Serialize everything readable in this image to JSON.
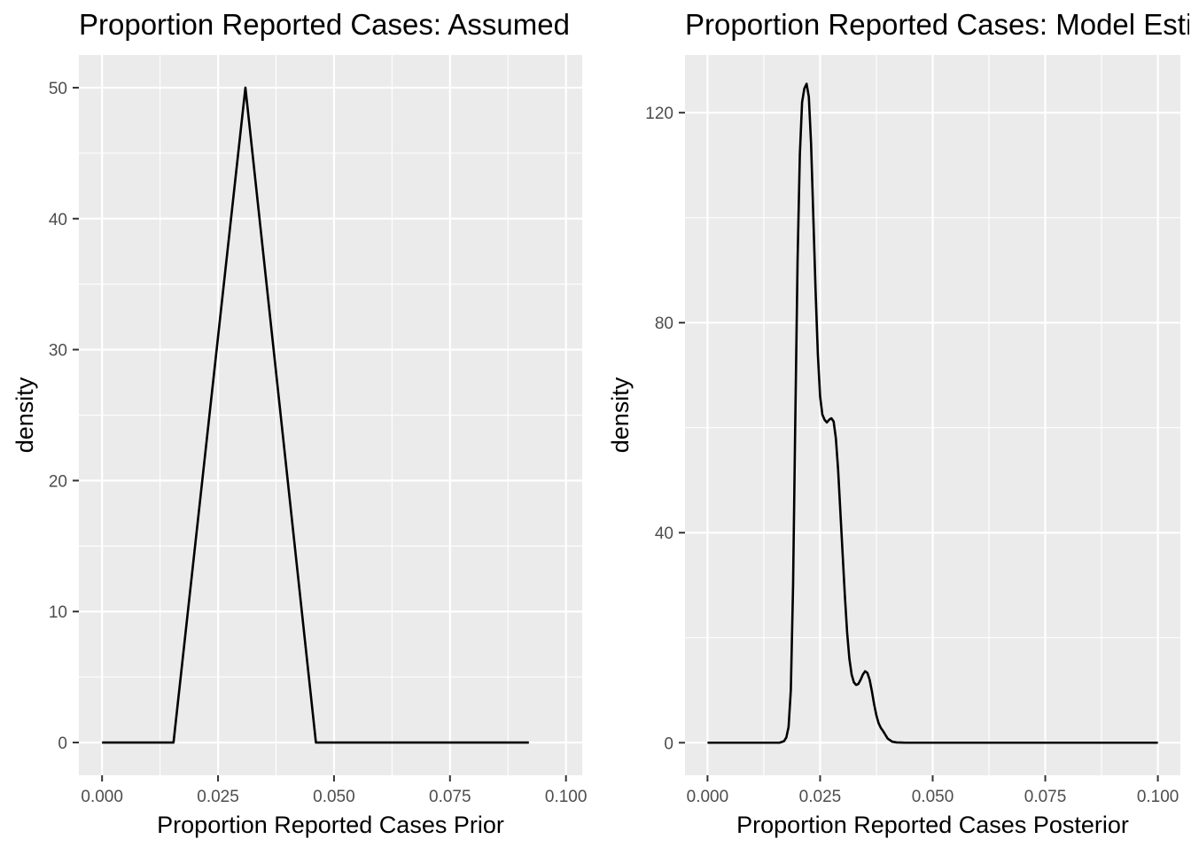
{
  "chart_data": [
    {
      "type": "line",
      "title": "Proportion Reported Cases: Assumed",
      "xlabel": "Proportion Reported Cases Prior",
      "ylabel": "density",
      "xlim": [
        -0.005,
        0.1035
      ],
      "ylim": [
        -2.5,
        52.5
      ],
      "xticks": [
        0.0,
        0.025,
        0.05,
        0.075,
        0.1
      ],
      "xtick_labels": [
        "0.000",
        "0.025",
        "0.050",
        "0.075",
        "0.100"
      ],
      "yticks": [
        0,
        10,
        20,
        30,
        40,
        50
      ],
      "ytick_labels": [
        "0",
        "10",
        "20",
        "30",
        "40",
        "50"
      ],
      "grid": true,
      "series": [
        {
          "x": [
            0.0,
            0.0154,
            0.0309,
            0.0461,
            0.092
          ],
          "y": [
            0,
            0,
            50,
            0,
            0
          ]
        }
      ]
    },
    {
      "type": "line",
      "title": "Proportion Reported Cases: Model Estimated",
      "xlabel": "Proportion Reported Cases Posterior",
      "ylabel": "density",
      "xlim": [
        -0.005,
        0.105
      ],
      "ylim": [
        -6.2,
        131
      ],
      "xticks": [
        0.0,
        0.025,
        0.05,
        0.075,
        0.1
      ],
      "xtick_labels": [
        "0.000",
        "0.025",
        "0.050",
        "0.075",
        "0.100"
      ],
      "yticks": [
        0,
        40,
        80,
        120
      ],
      "ytick_labels": [
        "0",
        "40",
        "80",
        "120"
      ],
      "grid": true,
      "series": [
        {
          "x": [
            0.0,
            0.016,
            0.017,
            0.0175,
            0.018,
            0.0185,
            0.019,
            0.0195,
            0.02,
            0.0205,
            0.021,
            0.0215,
            0.022,
            0.0225,
            0.023,
            0.0235,
            0.024,
            0.0245,
            0.025,
            0.0255,
            0.026,
            0.0265,
            0.027,
            0.0275,
            0.028,
            0.0285,
            0.029,
            0.0295,
            0.03,
            0.0305,
            0.031,
            0.0315,
            0.032,
            0.0325,
            0.033,
            0.0335,
            0.034,
            0.0345,
            0.035,
            0.0355,
            0.036,
            0.0365,
            0.037,
            0.0375,
            0.038,
            0.0385,
            0.039,
            0.0395,
            0.04,
            0.041,
            0.042,
            0.044,
            0.05,
            0.1
          ],
          "y": [
            0,
            0,
            0.3,
            1.0,
            3.0,
            10,
            30,
            62,
            92,
            112,
            122,
            124.6,
            125.5,
            123,
            114,
            100,
            86,
            74,
            66,
            62.5,
            61.5,
            61,
            61.5,
            61.8,
            61.2,
            58,
            52,
            44,
            36,
            28,
            21,
            16,
            13,
            11.5,
            11,
            11.2,
            12,
            13,
            13.6,
            13.3,
            12,
            9.8,
            7.3,
            5.2,
            3.7,
            2.8,
            2.2,
            1.5,
            0.8,
            0.2,
            0.05,
            0,
            0,
            0
          ]
        }
      ]
    }
  ]
}
